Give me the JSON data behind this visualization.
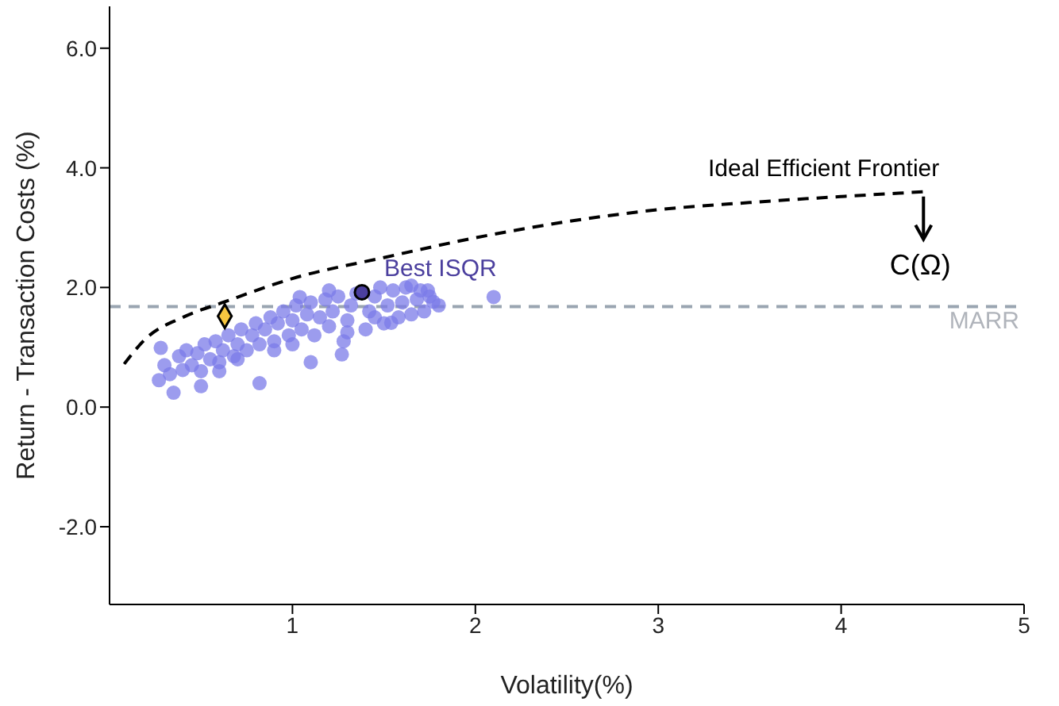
{
  "chart_data": {
    "type": "scatter",
    "xlabel": "Volatility(%)",
    "ylabel": "Return - Transaction Costs (%)",
    "xlim": [
      0,
      5
    ],
    "xticks": [
      1,
      2,
      3,
      4,
      5
    ],
    "ylim": [
      -3.3,
      6.7
    ],
    "yticks": [
      {
        "value": -2,
        "label": "-2.0"
      },
      {
        "value": 0,
        "label": "0.0"
      },
      {
        "value": 2,
        "label": "2.0"
      },
      {
        "value": 4,
        "label": "4.0"
      },
      {
        "value": 6,
        "label": "6.0"
      }
    ],
    "series": [
      {
        "color": "#7b7be8",
        "marker": "circle",
        "x": [
          0.27,
          0.35,
          0.5,
          0.82,
          2.1,
          1.74,
          1.77,
          1.27,
          1.1,
          0.28,
          1.54,
          1.2,
          1.04,
          1.65,
          0.3,
          0.33,
          0.38,
          0.4,
          0.42,
          0.45,
          0.48,
          0.5,
          0.52,
          0.55,
          0.58,
          0.6,
          0.62,
          0.65,
          0.68,
          0.7,
          0.72,
          0.75,
          0.78,
          0.8,
          0.82,
          0.85,
          0.88,
          0.9,
          0.92,
          0.95,
          0.98,
          1.0,
          1.02,
          1.05,
          1.08,
          1.1,
          1.12,
          1.15,
          1.18,
          1.2,
          1.22,
          1.25,
          1.28,
          1.3,
          1.32,
          1.35,
          1.4,
          1.42,
          1.45,
          1.48,
          1.5,
          1.52,
          1.55,
          1.58,
          1.6,
          1.62,
          1.65,
          1.68,
          1.7,
          1.72,
          1.75,
          1.8,
          0.6,
          0.7,
          0.9,
          1.0,
          1.3,
          1.45
        ],
        "values": [
          0.45,
          0.24,
          0.35,
          0.4,
          1.84,
          1.95,
          1.76,
          0.88,
          0.75,
          0.99,
          1.41,
          1.95,
          1.84,
          2.03,
          0.7,
          0.55,
          0.85,
          0.62,
          0.95,
          0.7,
          0.9,
          0.6,
          1.05,
          0.8,
          1.1,
          0.75,
          0.95,
          1.2,
          0.85,
          1.05,
          1.3,
          0.95,
          1.2,
          1.4,
          1.05,
          1.3,
          1.5,
          1.1,
          1.4,
          1.6,
          1.2,
          1.45,
          1.7,
          1.3,
          1.55,
          1.75,
          1.2,
          1.5,
          1.8,
          1.35,
          1.6,
          1.85,
          1.1,
          1.45,
          1.7,
          1.9,
          1.3,
          1.6,
          1.85,
          2.0,
          1.4,
          1.7,
          1.95,
          1.5,
          1.75,
          2.0,
          1.55,
          1.8,
          1.95,
          1.6,
          1.85,
          1.7,
          0.6,
          0.8,
          0.95,
          1.05,
          1.25,
          1.5
        ]
      },
      {
        "type": "line",
        "name": "Ideal Efficient Frontier",
        "color": "#000000",
        "marker": "none",
        "line_style": "dashed",
        "x": [
          0.08,
          0.2,
          0.4,
          0.63,
          1.0,
          1.5,
          2.0,
          2.5,
          3.0,
          3.5,
          4.0,
          4.45
        ],
        "values": [
          0.72,
          1.15,
          1.5,
          1.76,
          2.15,
          2.5,
          2.83,
          3.1,
          3.3,
          3.42,
          3.52,
          3.6
        ]
      },
      {
        "name": "Best ISQR",
        "color": "#4b3f9e",
        "marker": "circle",
        "x": [
          1.38
        ],
        "values": [
          1.92
        ]
      },
      {
        "color": "#f5b400",
        "marker": "diamond",
        "x": [
          0.63
        ],
        "values": [
          1.52
        ]
      }
    ],
    "ref_lines": [
      {
        "axis": "y",
        "value": 1.68,
        "label": "MARR",
        "color": "#9aa5b1",
        "line_style": "dashed"
      }
    ],
    "annotations": [
      {
        "text": "C(Ω)",
        "x": 4.45,
        "y": 3.6
      }
    ]
  }
}
